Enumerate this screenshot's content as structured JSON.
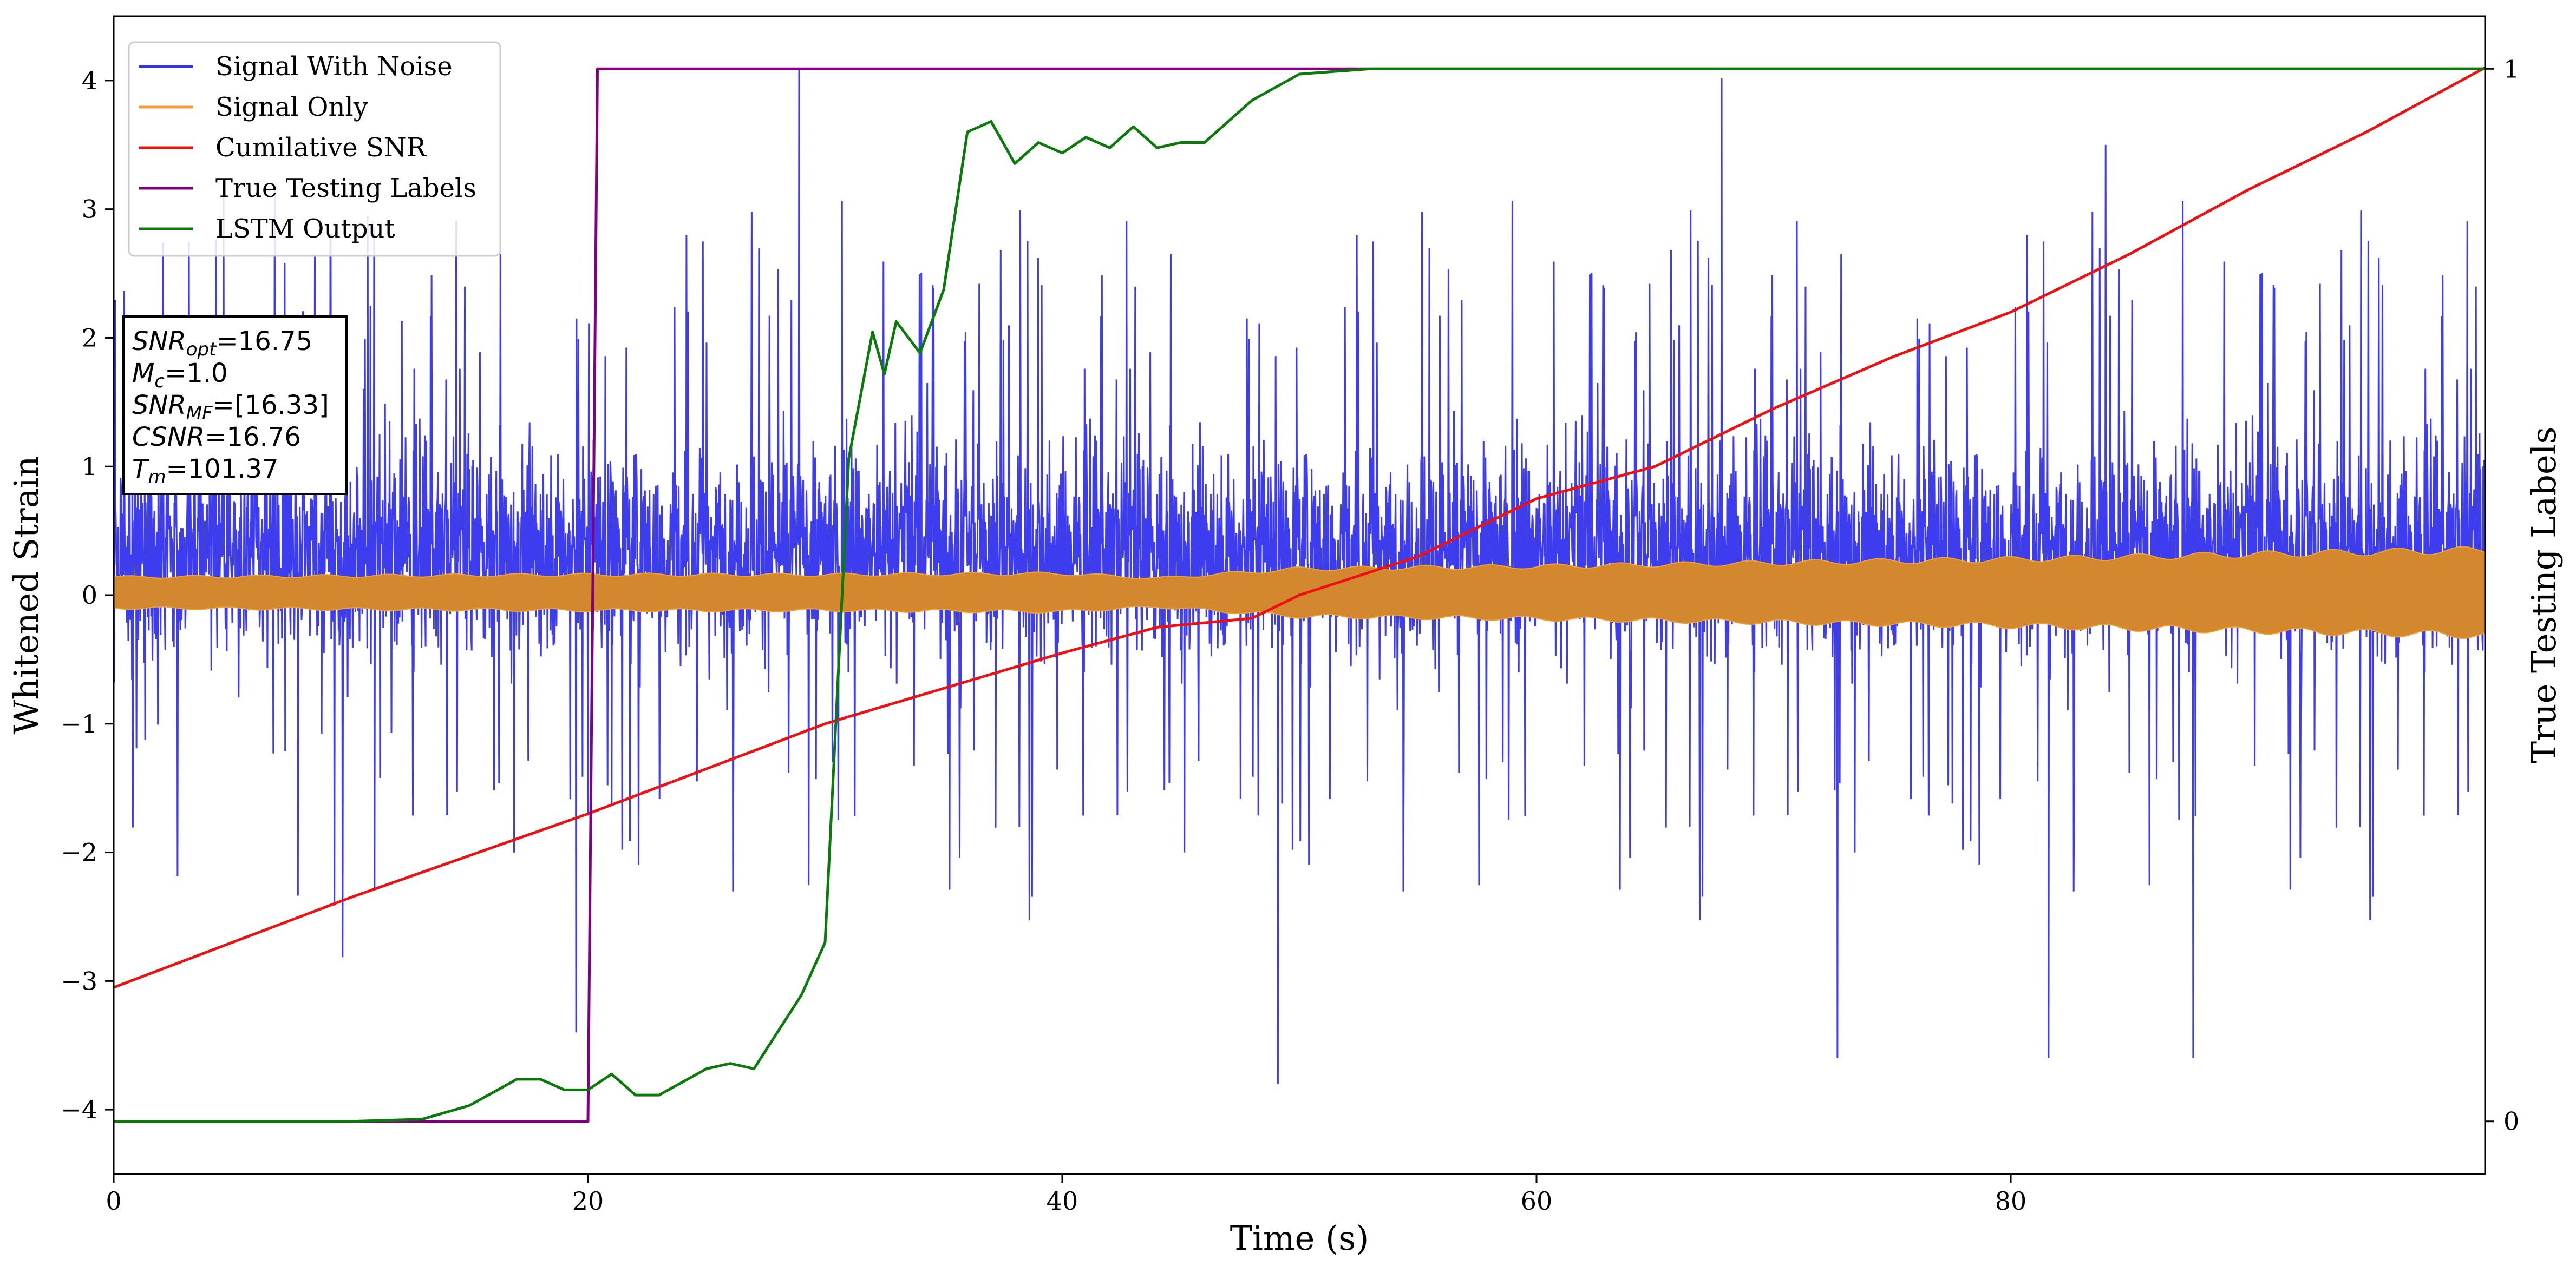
{
  "chart_data": {
    "type": "line",
    "xlabel": "Time (s)",
    "ylabel": "Whitened Strain",
    "y2label": "True Testing Labels",
    "xlim": [
      0,
      100
    ],
    "ylim": [
      -4.5,
      4.5
    ],
    "y2lim": [
      -0.05,
      1.05
    ],
    "x_ticks": [
      0,
      20,
      40,
      60,
      80
    ],
    "y_ticks": [
      -4,
      -3,
      -2,
      -1,
      0,
      1,
      2,
      3,
      4
    ],
    "y2_ticks": [
      0,
      1
    ],
    "grid": false,
    "legend_position": "top-left",
    "series": [
      {
        "name": "Signal With Noise",
        "color": "#3333ee",
        "axis": "left",
        "style": "dense-noise",
        "typical_range": [
          -1.5,
          2.5
        ],
        "peaks": [
          {
            "x": 28.9,
            "y": 4.1
          },
          {
            "x": 67.8,
            "y": 4.02
          },
          {
            "x": 72.7,
            "y": -3.6
          },
          {
            "x": 49.1,
            "y": -3.8
          },
          {
            "x": 84.0,
            "y": 3.5
          },
          {
            "x": 19.5,
            "y": -3.4
          },
          {
            "x": 81.6,
            "y": -3.6
          },
          {
            "x": 87.7,
            "y": -3.6
          }
        ]
      },
      {
        "name": "Signal Only",
        "color": "#f0a030",
        "axis": "left",
        "style": "band",
        "x": [
          0,
          10,
          20,
          30,
          40,
          44,
          50,
          60,
          70,
          80,
          90,
          100
        ],
        "amplitude": [
          0.13,
          0.14,
          0.15,
          0.15,
          0.16,
          0.12,
          0.2,
          0.22,
          0.25,
          0.28,
          0.32,
          0.36
        ]
      },
      {
        "name": "Cumilative SNR",
        "color": "#ee1111",
        "axis": "left",
        "x": [
          0,
          10,
          20,
          30,
          40,
          44,
          48,
          50,
          55,
          60,
          65,
          70,
          75,
          80,
          85,
          90,
          95,
          100
        ],
        "y": [
          -3.05,
          -2.35,
          -1.7,
          -1.0,
          -0.45,
          -0.25,
          -0.18,
          0.0,
          0.3,
          0.75,
          1.0,
          1.45,
          1.85,
          2.2,
          2.65,
          3.15,
          3.6,
          4.1
        ]
      },
      {
        "name": "True Testing Labels",
        "color": "#800080",
        "axis": "right",
        "x": [
          0,
          20.0,
          20.4,
          100
        ],
        "y": [
          0,
          0,
          1,
          1
        ]
      },
      {
        "name": "LSTM Output",
        "color": "#0a7a0a",
        "axis": "right",
        "x": [
          0,
          10,
          13,
          15,
          17,
          18,
          19,
          20,
          21,
          22,
          23,
          25,
          26,
          27,
          28,
          29,
          30,
          31,
          32,
          32.5,
          33,
          34,
          35,
          36,
          37,
          38,
          39,
          40,
          41,
          42,
          43,
          44,
          45,
          46,
          47,
          48,
          50,
          53,
          55,
          60,
          100
        ],
        "y": [
          0,
          0,
          0.002,
          0.015,
          0.04,
          0.04,
          0.03,
          0.03,
          0.045,
          0.025,
          0.025,
          0.05,
          0.055,
          0.05,
          0.085,
          0.12,
          0.17,
          0.63,
          0.75,
          0.71,
          0.76,
          0.73,
          0.79,
          0.94,
          0.95,
          0.91,
          0.93,
          0.92,
          0.935,
          0.925,
          0.945,
          0.925,
          0.93,
          0.93,
          0.95,
          0.97,
          0.995,
          1.0,
          1.0,
          1.0,
          1.0
        ]
      }
    ],
    "annotation": [
      {
        "label": "SNR",
        "sub": "opt",
        "value": "=16.75"
      },
      {
        "label": "M",
        "sub": "c",
        "value": "=1.0"
      },
      {
        "label": "SNR",
        "sub": "MF",
        "value": "=[16.33]"
      },
      {
        "label": "CSNR",
        "sub": "",
        "value": "=16.76"
      },
      {
        "label": "T",
        "sub": "m",
        "value": "=101.37"
      }
    ]
  }
}
